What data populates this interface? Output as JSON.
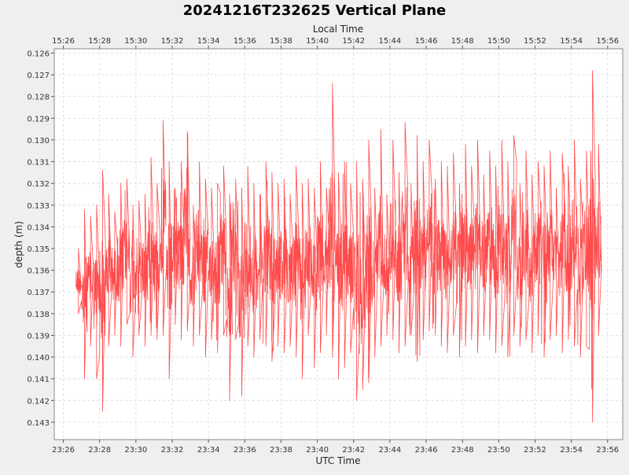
{
  "chart_data": {
    "type": "line",
    "title": "20241216T232625 Vertical Plane",
    "xlabel_bottom": "UTC Time",
    "xlabel_top": "Local Time",
    "ylabel": "depth (m)",
    "y_inverted": true,
    "ylim": [
      0.1258,
      0.1438
    ],
    "yticks": [
      "0.126",
      "0.127",
      "0.128",
      "0.129",
      "0.130",
      "0.131",
      "0.132",
      "0.133",
      "0.134",
      "0.135",
      "0.136",
      "0.137",
      "0.138",
      "0.139",
      "0.140",
      "0.141",
      "0.142",
      "0.143"
    ],
    "xlim_utc": [
      "23:25:30",
      "23:56:50"
    ],
    "xticks_bottom": [
      "23:26",
      "23:28",
      "23:30",
      "23:32",
      "23:34",
      "23:36",
      "23:38",
      "23:40",
      "23:42",
      "23:44",
      "23:46",
      "23:48",
      "23:50",
      "23:52",
      "23:54",
      "23:56"
    ],
    "xticks_top": [
      "15:26",
      "15:28",
      "15:30",
      "15:32",
      "15:34",
      "15:36",
      "15:38",
      "15:40",
      "15:42",
      "15:44",
      "15:46",
      "15:48",
      "15:50",
      "15:52",
      "15:54",
      "15:56"
    ],
    "grid": true,
    "series": [
      {
        "color": "#ff4c4c",
        "x": [
          "23:26:40",
          "23:27:00",
          "23:27:20",
          "23:27:40",
          "23:28:00",
          "23:28:20",
          "23:28:40",
          "23:29:00",
          "23:29:20",
          "23:29:40",
          "23:30:00",
          "23:30:20",
          "23:30:40",
          "23:31:00",
          "23:31:20",
          "23:31:40",
          "23:32:00",
          "23:32:20",
          "23:32:40",
          "23:33:00",
          "23:33:20",
          "23:33:40",
          "23:34:00",
          "23:34:20",
          "23:34:40",
          "23:35:00",
          "23:35:20",
          "23:35:40",
          "23:36:00",
          "23:36:20",
          "23:36:40",
          "23:37:00",
          "23:37:20",
          "23:37:40",
          "23:38:00",
          "23:38:20",
          "23:38:40",
          "23:39:00",
          "23:39:20",
          "23:39:40",
          "23:40:00",
          "23:40:20",
          "23:40:40",
          "23:41:00",
          "23:41:20",
          "23:41:40",
          "23:42:00",
          "23:42:20",
          "23:42:40",
          "23:43:00",
          "23:43:20",
          "23:43:40",
          "23:44:00",
          "23:44:20",
          "23:44:40",
          "23:45:00",
          "23:45:20",
          "23:45:40",
          "23:46:00",
          "23:46:20",
          "23:46:40",
          "23:47:00",
          "23:47:20",
          "23:47:40",
          "23:48:00",
          "23:48:20",
          "23:48:40",
          "23:49:00",
          "23:49:20",
          "23:49:40",
          "23:50:00",
          "23:50:20",
          "23:50:40",
          "23:51:00",
          "23:51:20",
          "23:51:40",
          "23:52:00",
          "23:52:20",
          "23:52:40",
          "23:53:00",
          "23:53:20",
          "23:53:40",
          "23:54:00",
          "23:54:20",
          "23:54:40",
          "23:55:00",
          "23:55:20",
          "23:55:40"
        ],
        "y_min": [
          0.135,
          0.1332,
          0.1335,
          0.133,
          0.1314,
          0.1325,
          0.1333,
          0.132,
          0.1318,
          0.133,
          0.1328,
          0.1325,
          0.1308,
          0.132,
          0.1291,
          0.131,
          0.1322,
          0.131,
          0.1296,
          0.133,
          0.131,
          0.1318,
          0.1322,
          0.132,
          0.1312,
          0.1325,
          0.1318,
          0.1322,
          0.1312,
          0.132,
          0.1325,
          0.131,
          0.1315,
          0.132,
          0.1318,
          0.1325,
          0.1312,
          0.132,
          0.1318,
          0.1322,
          0.131,
          0.1322,
          0.1274,
          0.1315,
          0.131,
          0.132,
          0.131,
          0.1318,
          0.13,
          0.1322,
          0.1295,
          0.1325,
          0.13,
          0.1315,
          0.1292,
          0.132,
          0.1298,
          0.131,
          0.13,
          0.1318,
          0.131,
          0.1312,
          0.1306,
          0.132,
          0.1302,
          0.1312,
          0.13,
          0.1316,
          0.1305,
          0.1312,
          0.13,
          0.131,
          0.1298,
          0.132,
          0.1305,
          0.1316,
          0.131,
          0.1312,
          0.1305,
          0.1322,
          0.1306,
          0.1312,
          0.13,
          0.1318,
          0.1305,
          0.1268,
          0.1302,
          0.133
        ],
        "y_max": [
          0.138,
          0.141,
          0.1395,
          0.141,
          0.1425,
          0.1395,
          0.139,
          0.1395,
          0.1385,
          0.14,
          0.139,
          0.1395,
          0.139,
          0.1392,
          0.139,
          0.141,
          0.1385,
          0.1392,
          0.1388,
          0.1395,
          0.139,
          0.14,
          0.1392,
          0.1398,
          0.139,
          0.142,
          0.1392,
          0.1418,
          0.1395,
          0.14,
          0.1392,
          0.1395,
          0.1402,
          0.1395,
          0.1398,
          0.1395,
          0.14,
          0.141,
          0.139,
          0.1405,
          0.1398,
          0.139,
          0.14,
          0.141,
          0.1405,
          0.1398,
          0.142,
          0.1415,
          0.1412,
          0.14,
          0.1395,
          0.139,
          0.1392,
          0.1398,
          0.1395,
          0.139,
          0.1402,
          0.1392,
          0.1388,
          0.139,
          0.1395,
          0.1398,
          0.139,
          0.14,
          0.1395,
          0.1392,
          0.1398,
          0.139,
          0.1392,
          0.1398,
          0.1395,
          0.14,
          0.139,
          0.1395,
          0.1392,
          0.1398,
          0.139,
          0.14,
          0.1392,
          0.139,
          0.1398,
          0.1392,
          0.1395,
          0.14,
          0.1395,
          0.143,
          0.139,
          0.1385
        ]
      }
    ]
  }
}
